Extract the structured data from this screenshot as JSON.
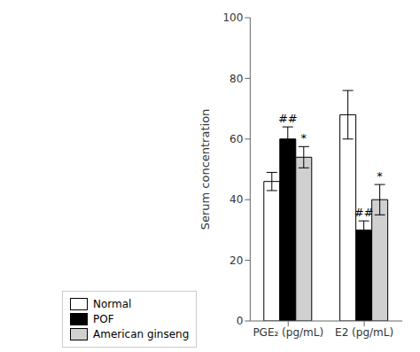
{
  "chart_data": {
    "type": "bar",
    "categories": [
      "PGE₂ (pg/mL)",
      "E2 (pg/mL)"
    ],
    "series": [
      {
        "name": "Normal",
        "color": "#ffffff",
        "values": [
          46,
          68
        ],
        "errors": [
          3,
          8
        ]
      },
      {
        "name": "POF",
        "color": "#000000",
        "values": [
          60,
          30
        ],
        "errors": [
          4,
          3
        ],
        "annotations": [
          "##",
          "##"
        ]
      },
      {
        "name": "American ginseng",
        "color": "#d0d0d0",
        "values": [
          54,
          40
        ],
        "errors": [
          3.5,
          5
        ],
        "annotations": [
          "*",
          "*"
        ]
      }
    ],
    "ylabel": "Serum concentration",
    "ylim": [
      0,
      100
    ],
    "yticks": [
      0,
      20,
      40,
      60,
      80,
      100
    ],
    "grid": false,
    "legend": "bottom"
  }
}
